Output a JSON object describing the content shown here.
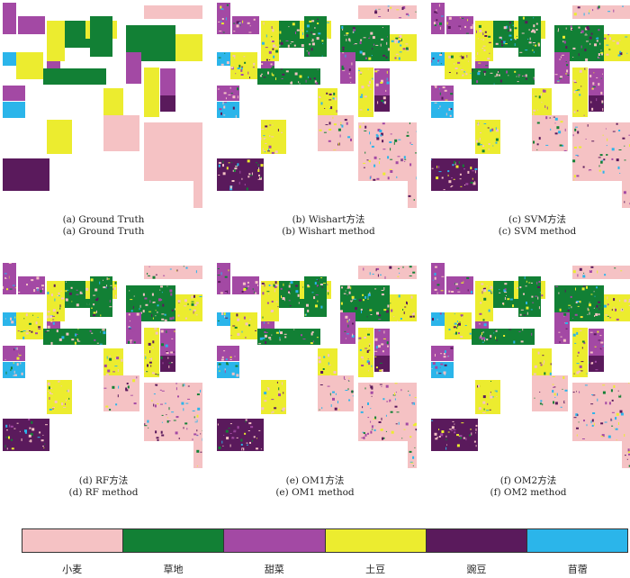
{
  "colors": {
    "wheat": "#f5c2c4",
    "grass": "#128035",
    "beet": "#a349a4",
    "potato": "#ecec2f",
    "pea": "#5a1a5c",
    "alfalfa": "#2bb5ea"
  },
  "panels": [
    {
      "id": "a",
      "caption_cn": "(a) Ground Truth",
      "caption_en": "(a) Ground Truth",
      "noisy": false
    },
    {
      "id": "b",
      "caption_cn": "(b) Wishart方法",
      "caption_en": "(b) Wishart method",
      "noisy": true
    },
    {
      "id": "c",
      "caption_cn": "(c) SVM方法",
      "caption_en": "(c) SVM method",
      "noisy": true
    },
    {
      "id": "d",
      "caption_cn": "(d) RF方法",
      "caption_en": "(d) RF method",
      "noisy": true
    },
    {
      "id": "e",
      "caption_cn": "(e) OM1方法",
      "caption_en": "(e) OM1 method",
      "noisy": true
    },
    {
      "id": "f",
      "caption_cn": "(f) OM2方法",
      "caption_en": "(f) OM2 method",
      "noisy": true
    }
  ],
  "legend": [
    {
      "label": "小麦",
      "color": "#f5c2c4"
    },
    {
      "label": "草地",
      "color": "#128035"
    },
    {
      "label": "甜菜",
      "color": "#a349a4"
    },
    {
      "label": "土豆",
      "color": "#ecec2f"
    },
    {
      "label": "豌豆",
      "color": "#5a1a5c"
    },
    {
      "label": "苜蓿",
      "color": "#2bb5ea"
    }
  ]
}
